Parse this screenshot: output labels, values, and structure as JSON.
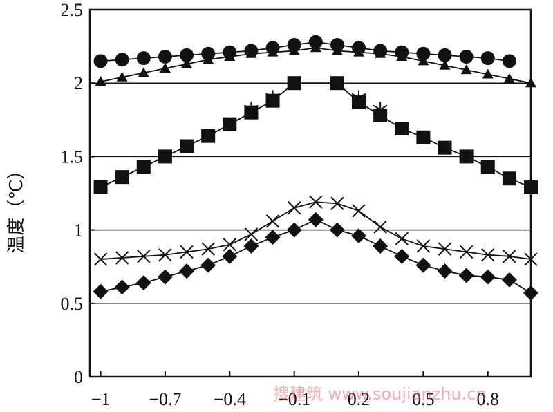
{
  "chart_data": {
    "type": "line",
    "title": "",
    "xlabel": "",
    "ylabel": "温度（℃）",
    "xlim": [
      -1.05,
      1.0
    ],
    "ylim": [
      0,
      2.5
    ],
    "x_ticks": [
      -1,
      -0.7,
      -0.4,
      -0.1,
      0.2,
      0.5,
      0.8
    ],
    "x_tick_labels": [
      "−1",
      "−0.7",
      "−0.4",
      "−0.1",
      "0.2",
      "0.5",
      "0.8"
    ],
    "y_ticks": [
      0,
      0.5,
      1,
      1.5,
      2,
      2.5
    ],
    "y_tick_labels": [
      "0",
      "0.5",
      "1",
      "1.5",
      "2",
      "2.5"
    ],
    "gridlines_y": [
      0.5,
      1,
      1.5,
      2
    ],
    "series": [
      {
        "marker": "circle",
        "x": [
          -1,
          -0.9,
          -0.8,
          -0.7,
          -0.6,
          -0.5,
          -0.4,
          -0.3,
          -0.2,
          -0.1,
          0,
          0.1,
          0.2,
          0.3,
          0.4,
          0.5,
          0.6,
          0.7,
          0.8,
          0.9
        ],
        "values": [
          2.15,
          2.16,
          2.17,
          2.18,
          2.19,
          2.2,
          2.21,
          2.22,
          2.24,
          2.26,
          2.28,
          2.26,
          2.24,
          2.22,
          2.21,
          2.2,
          2.19,
          2.18,
          2.17,
          2.15
        ]
      },
      {
        "marker": "triangle",
        "x": [
          -1,
          -0.9,
          -0.8,
          -0.7,
          -0.6,
          -0.5,
          -0.4,
          -0.3,
          -0.2,
          -0.1,
          0,
          0.1,
          0.2,
          0.3,
          0.4,
          0.5,
          0.6,
          0.7,
          0.8,
          0.9,
          1.0
        ],
        "values": [
          2.01,
          2.04,
          2.07,
          2.1,
          2.13,
          2.16,
          2.18,
          2.2,
          2.21,
          2.22,
          2.24,
          2.22,
          2.21,
          2.2,
          2.18,
          2.15,
          2.12,
          2.09,
          2.06,
          2.03,
          2.0
        ]
      },
      {
        "marker": "square",
        "x": [
          -1,
          -0.9,
          -0.8,
          -0.7,
          -0.6,
          -0.5,
          -0.4,
          -0.3,
          -0.2,
          -0.1,
          0.1,
          0.2,
          0.3,
          0.4,
          0.5,
          0.6,
          0.7,
          0.8,
          0.9,
          1.0
        ],
        "values": [
          1.29,
          1.36,
          1.43,
          1.5,
          1.57,
          1.64,
          1.72,
          1.8,
          1.88,
          2.0,
          2.0,
          1.87,
          1.78,
          1.69,
          1.63,
          1.56,
          1.5,
          1.43,
          1.35,
          1.29
        ]
      },
      {
        "marker": "asterisk",
        "x": [
          -0.3,
          -0.2,
          0.2,
          0.3
        ],
        "values": [
          1.82,
          1.9,
          1.9,
          1.82
        ]
      },
      {
        "marker": "x",
        "x": [
          -1,
          -0.9,
          -0.8,
          -0.7,
          -0.6,
          -0.5,
          -0.4,
          -0.3,
          -0.2,
          -0.1,
          0,
          0.1,
          0.2,
          0.3,
          0.4,
          0.5,
          0.6,
          0.7,
          0.8,
          0.9,
          1.0
        ],
        "values": [
          0.8,
          0.81,
          0.82,
          0.83,
          0.85,
          0.87,
          0.9,
          0.97,
          1.06,
          1.15,
          1.19,
          1.18,
          1.13,
          1.02,
          0.94,
          0.89,
          0.87,
          0.85,
          0.83,
          0.82,
          0.8
        ]
      },
      {
        "marker": "diamond",
        "x": [
          -1,
          -0.9,
          -0.8,
          -0.7,
          -0.6,
          -0.5,
          -0.4,
          -0.3,
          -0.2,
          -0.1,
          0,
          0.1,
          0.2,
          0.3,
          0.4,
          0.5,
          0.6,
          0.7,
          0.8,
          0.9,
          1.0
        ],
        "values": [
          0.58,
          0.61,
          0.64,
          0.68,
          0.72,
          0.76,
          0.82,
          0.89,
          0.95,
          1.0,
          1.07,
          1.0,
          0.96,
          0.89,
          0.82,
          0.76,
          0.72,
          0.69,
          0.68,
          0.66,
          0.57
        ]
      }
    ]
  },
  "watermark": "搜建筑 www.soujianzhu.cn"
}
